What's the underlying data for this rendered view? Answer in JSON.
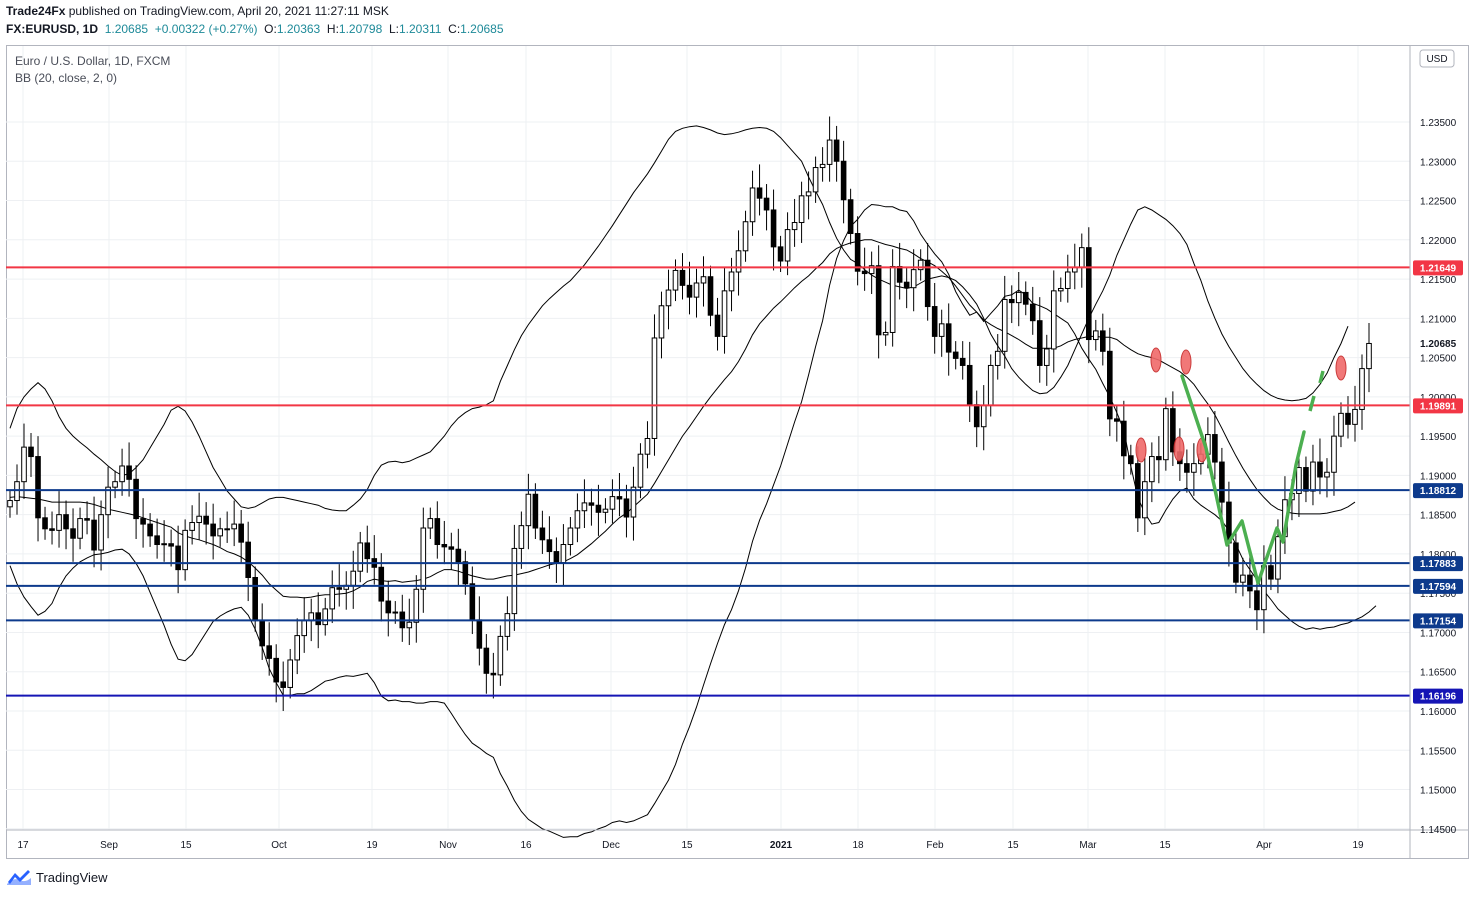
{
  "header": {
    "publisher": "Trade24Fx",
    "published_text": "published on TradingView.com, April 20, 2021 11:27:11 MSK",
    "symbol": "FX:EURUSD, 1D",
    "last": "1.20685",
    "change": "+0.00322 (+0.27%)",
    "o_label": "O:",
    "o_value": "1.20363",
    "h_label": "H:",
    "h_value": "1.20798",
    "l_label": "L:",
    "l_value": "1.20311",
    "c_label": "C:",
    "c_value": "1.20685"
  },
  "legend": {
    "title": "Euro / U.S. Dollar, 1D, FXCM",
    "indicator": "BB (20, close, 2, 0)"
  },
  "currency_button": "USD",
  "footer": {
    "brand": "TradingView"
  },
  "colors": {
    "resistance_red": "#f23645",
    "support_blue": "#0d3a8c",
    "deep_blue": "#1515b5",
    "marker_red": "#f06a6a",
    "pattern_green": "#4caf50",
    "candle_dark": "#000000"
  },
  "chart_data": {
    "type": "candlestick",
    "title": "Euro / U.S. Dollar, 1D, FXCM",
    "ylim": [
      1.1425,
      1.2365
    ],
    "y_ticks": [
      "1.23500",
      "1.23000",
      "1.22500",
      "1.22000",
      "1.21500",
      "1.21000",
      "1.20500",
      "1.20000",
      "1.19500",
      "1.19000",
      "1.18500",
      "1.18000",
      "1.17500",
      "1.17000",
      "1.16500",
      "1.16000",
      "1.15500",
      "1.15000",
      "1.14500"
    ],
    "x_ticks": [
      "17",
      "Sep",
      "15",
      "Oct",
      "19",
      "Nov",
      "16",
      "Dec",
      "15",
      "2021",
      "18",
      "Feb",
      "15",
      "Mar",
      "15",
      "Apr",
      "19"
    ],
    "last_price_label": "1.20685",
    "grid": true,
    "horizontal_levels": [
      {
        "value": 1.21649,
        "label": "1.21649",
        "color": "red"
      },
      {
        "value": 1.19891,
        "label": "1.19891",
        "color": "red"
      },
      {
        "value": 1.18812,
        "label": "1.18812",
        "color": "blue"
      },
      {
        "value": 1.17883,
        "label": "1.17883",
        "color": "blue"
      },
      {
        "value": 1.17594,
        "label": "1.17594",
        "color": "blue"
      },
      {
        "value": 1.17154,
        "label": "1.17154",
        "color": "blue"
      },
      {
        "value": 1.16196,
        "label": "1.16196",
        "color": "deepblue"
      }
    ],
    "price_closes": [
      1.1868,
      1.1892,
      1.1936,
      1.1924,
      1.1846,
      1.1832,
      1.183,
      1.185,
      1.1832,
      1.182,
      1.1845,
      1.1843,
      1.1805,
      1.185,
      1.1885,
      1.1892,
      1.1912,
      1.1895,
      1.1845,
      1.1838,
      1.1823,
      1.1812,
      1.1813,
      1.181,
      1.178,
      1.183,
      1.184,
      1.1848,
      1.1838,
      1.1823,
      1.1832,
      1.1832,
      1.1838,
      1.1815,
      1.177,
      1.1715,
      1.1683,
      1.1667,
      1.1637,
      1.163,
      1.1665,
      1.1696,
      1.1715,
      1.1725,
      1.171,
      1.173,
      1.1757,
      1.1755,
      1.176,
      1.1778,
      1.1814,
      1.1794,
      1.1783,
      1.174,
      1.1725,
      1.1726,
      1.1706,
      1.1713,
      1.1755,
      1.1833,
      1.1845,
      1.1812,
      1.1809,
      1.1806,
      1.179,
      1.1762,
      1.1716,
      1.168,
      1.1648,
      1.1646,
      1.1695,
      1.1724,
      1.1807,
      1.1836,
      1.1876,
      1.1833,
      1.1818,
      1.1803,
      1.1789,
      1.1812,
      1.1833,
      1.1855,
      1.1865,
      1.1862,
      1.1853,
      1.1857,
      1.1873,
      1.187,
      1.1847,
      1.1885,
      1.1927,
      1.1947,
      1.2075,
      1.2116,
      1.2136,
      1.2161,
      1.2142,
      1.2127,
      1.2145,
      1.2153,
      1.2104,
      1.2077,
      1.2135,
      1.2159,
      1.2186,
      1.2223,
      1.2266,
      1.2253,
      1.2238,
      1.2191,
      1.2173,
      1.2213,
      1.2222,
      1.2256,
      1.2261,
      1.2292,
      1.2296,
      1.2327,
      1.23,
      1.2251,
      1.2208,
      1.216,
      1.2157,
      1.2167,
      1.2079,
      1.2082,
      1.2166,
      1.2146,
      1.2139,
      1.2162,
      1.2174,
      1.2115,
      1.2077,
      1.2093,
      1.2057,
      1.2049,
      1.204,
      1.199,
      1.1962,
      1.1989,
      1.204,
      1.2058,
      1.2124,
      1.212,
      1.2133,
      1.2118,
      1.2097,
      1.204,
      1.2061,
      1.2135,
      1.2138,
      1.2159,
      1.2165,
      1.219,
      1.2073,
      1.2084,
      1.2058,
      1.1972,
      1.1969,
      1.1925,
      1.1915,
      1.1846,
      1.1892,
      1.1924,
      1.192,
      1.1985,
      1.193,
      1.1915,
      1.1904,
      1.1915,
      1.1927,
      1.1952,
      1.1917,
      1.1866,
      1.1814,
      1.1764,
      1.1773,
      1.1753,
      1.1729,
      1.1785,
      1.1768,
      1.1822,
      1.1869,
      1.1877,
      1.191,
      1.188,
      1.1917,
      1.1898,
      1.1904,
      1.195,
      1.1979,
      1.1965,
      1.1984,
      1.2036,
      1.2068
    ],
    "bb_upper": [
      1.196,
      1.1985,
      1.2,
      1.201,
      1.2018,
      1.201,
      1.1995,
      1.1975,
      1.196,
      1.195,
      1.1942,
      1.1935,
      1.1927,
      1.192,
      1.1912,
      1.1905,
      1.19,
      1.1902,
      1.191,
      1.192,
      1.1935,
      1.195,
      1.1965,
      1.1983,
      1.1988,
      1.1982,
      1.1968,
      1.195,
      1.193,
      1.191,
      1.1895,
      1.188,
      1.187,
      1.186,
      1.1858,
      1.186,
      1.1865,
      1.187,
      1.1872,
      1.1872,
      1.187,
      1.1868,
      1.1866,
      1.1864,
      1.1862,
      1.1858,
      1.1856,
      1.1855,
      1.1855,
      1.1862,
      1.187,
      1.1882,
      1.19,
      1.1913,
      1.1917,
      1.1918,
      1.1916,
      1.1918,
      1.1922,
      1.1926,
      1.193,
      1.194,
      1.195,
      1.1963,
      1.1973,
      1.198,
      1.1985,
      1.1987,
      1.199,
      1.1995,
      1.202,
      1.204,
      1.206,
      1.2078,
      1.2092,
      1.2104,
      1.2116,
      1.2125,
      1.2133,
      1.2141,
      1.2148,
      1.2158,
      1.2168,
      1.218,
      1.2192,
      1.2205,
      1.2218,
      1.2232,
      1.2246,
      1.226,
      1.2272,
      1.2284,
      1.2298,
      1.2313,
      1.2328,
      1.2338,
      1.2342,
      1.2344,
      1.2345,
      1.2343,
      1.234,
      1.2336,
      1.2334,
      1.2335,
      1.2337,
      1.234,
      1.2342,
      1.2343,
      1.2342,
      1.2338,
      1.233,
      1.232,
      1.231,
      1.23,
      1.228,
      1.2262,
      1.2245,
      1.2222,
      1.2202,
      1.2187,
      1.2175,
      1.217,
      1.2162,
      1.2155,
      1.215,
      1.2146,
      1.2142,
      1.214,
      1.2138,
      1.214,
      1.2145,
      1.215,
      1.2152,
      1.2154,
      1.2152,
      1.2148,
      1.214,
      1.213,
      1.2118,
      1.21,
      1.208,
      1.2065,
      1.2052,
      1.2036,
      1.2025,
      1.2016,
      1.2008,
      1.2004,
      1.2005,
      1.2012,
      1.2025,
      1.204,
      1.206,
      1.208,
      1.21,
      1.2118,
      1.2135,
      1.2155,
      1.218,
      1.22,
      1.222,
      1.2238,
      1.2242,
      1.2238,
      1.2232,
      1.2226,
      1.2218,
      1.2208,
      1.2194,
      1.217,
      1.2148,
      1.2122,
      1.21,
      1.208,
      1.2064,
      1.205,
      1.2036,
      1.2025,
      1.2016,
      1.2008,
      1.2002,
      1.1998,
      1.1996,
      1.1995,
      1.1996,
      1.1998,
      1.2005,
      1.2016,
      1.203,
      1.205,
      1.2068,
      1.209
    ],
    "bb_middle": [
      1.1872,
      1.1873,
      1.1872,
      1.1871,
      1.187,
      1.1868,
      1.1866,
      1.1866,
      1.1866,
      1.1866,
      1.1866,
      1.1865,
      1.1863,
      1.186,
      1.1857,
      1.1855,
      1.1853,
      1.1851,
      1.1849,
      1.1846,
      1.1843,
      1.184,
      1.1837,
      1.1834,
      1.1827,
      1.1823,
      1.182,
      1.1818,
      1.1815,
      1.1812,
      1.1808,
      1.1803,
      1.18,
      1.1796,
      1.179,
      1.1782,
      1.1773,
      1.1762,
      1.1754,
      1.1746,
      1.1745,
      1.1745,
      1.1744,
      1.1745,
      1.1747,
      1.1748,
      1.1748,
      1.1749,
      1.175,
      1.1753,
      1.1758,
      1.1765,
      1.1768,
      1.1766,
      1.1765,
      1.1766,
      1.1764,
      1.1765,
      1.1766,
      1.1768,
      1.1771,
      1.1776,
      1.178,
      1.178,
      1.1778,
      1.1775,
      1.1772,
      1.177,
      1.1768,
      1.1768,
      1.177,
      1.1772,
      1.1773,
      1.1775,
      1.1777,
      1.178,
      1.1783,
      1.1786,
      1.1788,
      1.179,
      1.1794,
      1.1799,
      1.1806,
      1.1813,
      1.1821,
      1.1829,
      1.1838,
      1.1846,
      1.1852,
      1.186,
      1.1868,
      1.1876,
      1.189,
      1.1905,
      1.192,
      1.1935,
      1.195,
      1.1962,
      1.1975,
      1.1988,
      1.2,
      1.2011,
      1.2022,
      1.2032,
      1.2045,
      1.2061,
      1.2079,
      1.2093,
      1.2103,
      1.2113,
      1.2121,
      1.213,
      1.2139,
      1.2147,
      1.2154,
      1.2163,
      1.2171,
      1.2182,
      1.2189,
      1.2193,
      1.2196,
      1.2198,
      1.22,
      1.22,
      1.2197,
      1.2194,
      1.2192,
      1.2189,
      1.2187,
      1.2182,
      1.2176,
      1.2172,
      1.2167,
      1.216,
      1.2152,
      1.2141,
      1.2129,
      1.2117,
      1.2108,
      1.2098,
      1.2092,
      1.2087,
      1.2083,
      1.2078,
      1.2073,
      1.2067,
      1.2062,
      1.2062,
      1.2062,
      1.2062,
      1.2065,
      1.207,
      1.2073,
      1.2075,
      1.2077,
      1.2077,
      1.2076,
      1.2076,
      1.2073,
      1.2066,
      1.206,
      1.2055,
      1.2052,
      1.205,
      1.2047,
      1.2042,
      1.2037,
      1.2032,
      1.2025,
      1.2016,
      1.2003,
      1.1991,
      1.1977,
      1.196,
      1.1942,
      1.1925,
      1.1909,
      1.1895,
      1.1882,
      1.1872,
      1.1863,
      1.1857,
      1.1854,
      1.1852,
      1.1851,
      1.1851,
      1.1851,
      1.1851,
      1.1852,
      1.1854,
      1.1856,
      1.186,
      1.1866
    ],
    "bb_lower": [
      1.1785,
      1.1762,
      1.1745,
      1.1733,
      1.1722,
      1.1727,
      1.1737,
      1.1757,
      1.1772,
      1.1782,
      1.179,
      1.1795,
      1.1799,
      1.18,
      1.1802,
      1.1805,
      1.1806,
      1.18,
      1.1788,
      1.1772,
      1.1751,
      1.173,
      1.1709,
      1.1685,
      1.1666,
      1.1664,
      1.1672,
      1.1686,
      1.17,
      1.1714,
      1.1721,
      1.1726,
      1.173,
      1.1732,
      1.1722,
      1.1704,
      1.1681,
      1.1654,
      1.1636,
      1.162,
      1.162,
      1.1622,
      1.1622,
      1.1626,
      1.1632,
      1.1638,
      1.164,
      1.1643,
      1.1645,
      1.1644,
      1.1646,
      1.1648,
      1.1636,
      1.1619,
      1.1613,
      1.1614,
      1.1612,
      1.1612,
      1.161,
      1.161,
      1.1612,
      1.1612,
      1.161,
      1.1597,
      1.1583,
      1.157,
      1.1559,
      1.1553,
      1.1546,
      1.1541,
      1.152,
      1.1504,
      1.1486,
      1.1472,
      1.1462,
      1.1456,
      1.145,
      1.1447,
      1.1443,
      1.1439,
      1.144,
      1.144,
      1.1444,
      1.1446,
      1.145,
      1.1453,
      1.1458,
      1.146,
      1.1458,
      1.146,
      1.1464,
      1.1468,
      1.1482,
      1.1497,
      1.1512,
      1.1532,
      1.1558,
      1.158,
      1.1605,
      1.1633,
      1.166,
      1.1686,
      1.171,
      1.1729,
      1.1753,
      1.1782,
      1.1816,
      1.1843,
      1.1864,
      1.1888,
      1.1912,
      1.194,
      1.1968,
      1.1994,
      1.2028,
      1.2064,
      1.2097,
      1.2142,
      1.2176,
      1.2199,
      1.2217,
      1.2226,
      1.2238,
      1.2245,
      1.2244,
      1.2242,
      1.2242,
      1.2238,
      1.2236,
      1.2224,
      1.2207,
      1.2194,
      1.2182,
      1.2172,
      1.2156,
      1.2134,
      1.2118,
      1.2104,
      1.2108,
      1.2096,
      1.2106,
      1.2116,
      1.2128,
      1.213,
      1.2136,
      1.213,
      1.2119,
      1.2116,
      1.2112,
      1.2106,
      1.21,
      1.2094,
      1.208,
      1.2062,
      1.2048,
      1.2035,
      1.2017,
      1.2,
      1.198,
      1.1958,
      1.1912,
      1.1872,
      1.1852,
      1.1838,
      1.184,
      1.1856,
      1.187,
      1.188,
      1.1884,
      1.187,
      1.1862,
      1.1856,
      1.185,
      1.1842,
      1.183,
      1.1812,
      1.1793,
      1.178,
      1.1767,
      1.1753,
      1.1742,
      1.173,
      1.1722,
      1.1714,
      1.1708,
      1.1704,
      1.1706,
      1.1704,
      1.1706,
      1.1707,
      1.171,
      1.1712,
      1.1716,
      1.172,
      1.1726,
      1.1734
    ]
  }
}
